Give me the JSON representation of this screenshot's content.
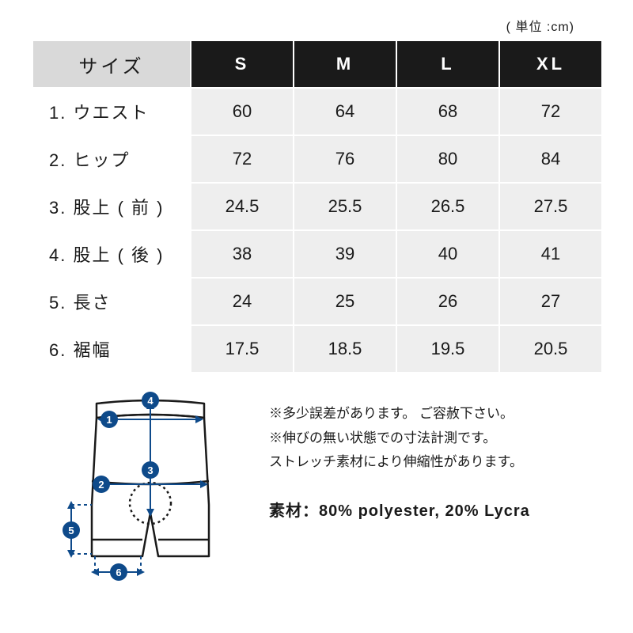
{
  "unit_label": "( 単位 :cm)",
  "table": {
    "header_row_label": "サイズ",
    "size_headers": [
      "S",
      "M",
      "L",
      "XL"
    ],
    "rows": [
      {
        "label": "1. ウエスト",
        "values": [
          "60",
          "64",
          "68",
          "72"
        ]
      },
      {
        "label": "2. ヒップ",
        "values": [
          "72",
          "76",
          "80",
          "84"
        ]
      },
      {
        "label": "3. 股上 ( 前 )",
        "values": [
          "24.5",
          "25.5",
          "26.5",
          "27.5"
        ]
      },
      {
        "label": "4. 股上 ( 後 )",
        "values": [
          "38",
          "39",
          "40",
          "41"
        ]
      },
      {
        "label": "5. 長さ",
        "values": [
          "24",
          "25",
          "26",
          "27"
        ]
      },
      {
        "label": "6. 裾幅",
        "values": [
          "17.5",
          "18.5",
          "19.5",
          "20.5"
        ]
      }
    ]
  },
  "notes": {
    "line1": "※多少誤差があります。 ご容赦下さい。",
    "line2": "※伸びの無い状態での寸法計測です。",
    "line3": "ストレッチ素材により伸縮性があります。",
    "material_label": "素材：",
    "material_value": "80% polyester, 20% Lycra"
  },
  "diagram": {
    "marker_fill": "#0e4a8a",
    "marker_text": "#ffffff",
    "arrow_color": "#0e4a8a",
    "outline_color": "#1a1a1a",
    "markers": [
      "1",
      "2",
      "3",
      "4",
      "5",
      "6"
    ]
  }
}
